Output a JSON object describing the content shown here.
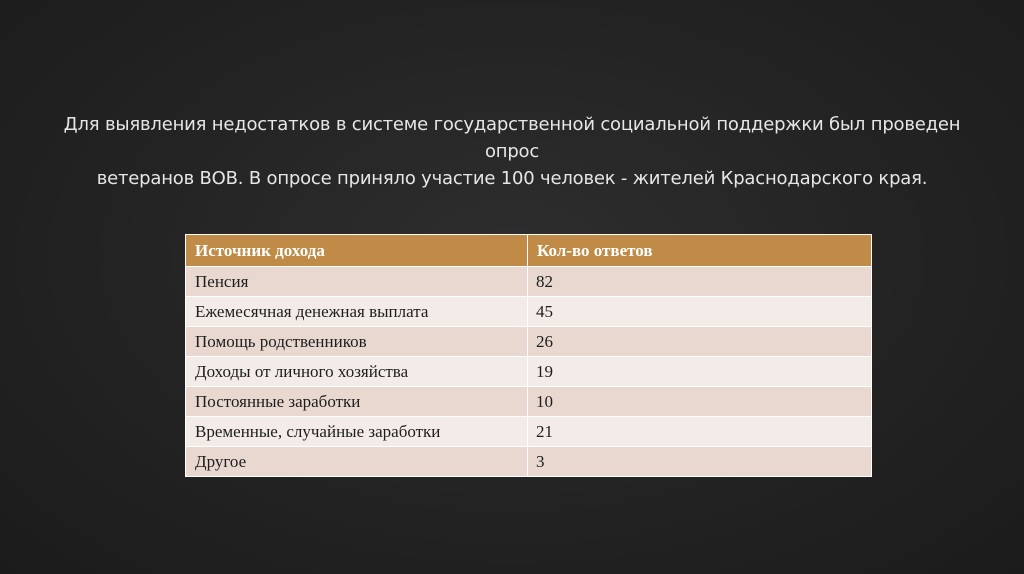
{
  "intro": {
    "line1": "Для выявления недостатков в системе государственной социальной поддержки был проведен опрос",
    "line2": "ветеранов ВОВ. В опросе приняло участие 100 человек - жителей Краснодарского края."
  },
  "table": {
    "headers": [
      "Источник дохода",
      "Кол-во ответов"
    ],
    "rows": [
      {
        "source": "Пенсия",
        "count": "82"
      },
      {
        "source": "Ежемесячная денежная выплата",
        "count": "45"
      },
      {
        "source": "Помощь родственников",
        "count": "26"
      },
      {
        "source": "Доходы от личного хозяйства",
        "count": "19"
      },
      {
        "source": "Постоянные заработки",
        "count": "10"
      },
      {
        "source": "Временные, случайные заработки",
        "count": "21"
      },
      {
        "source": "Другое",
        "count": "3"
      }
    ],
    "colors": {
      "header": "#bf8b46",
      "row_odd": "#e8d8d0",
      "row_even": "#f2ebe7"
    }
  }
}
